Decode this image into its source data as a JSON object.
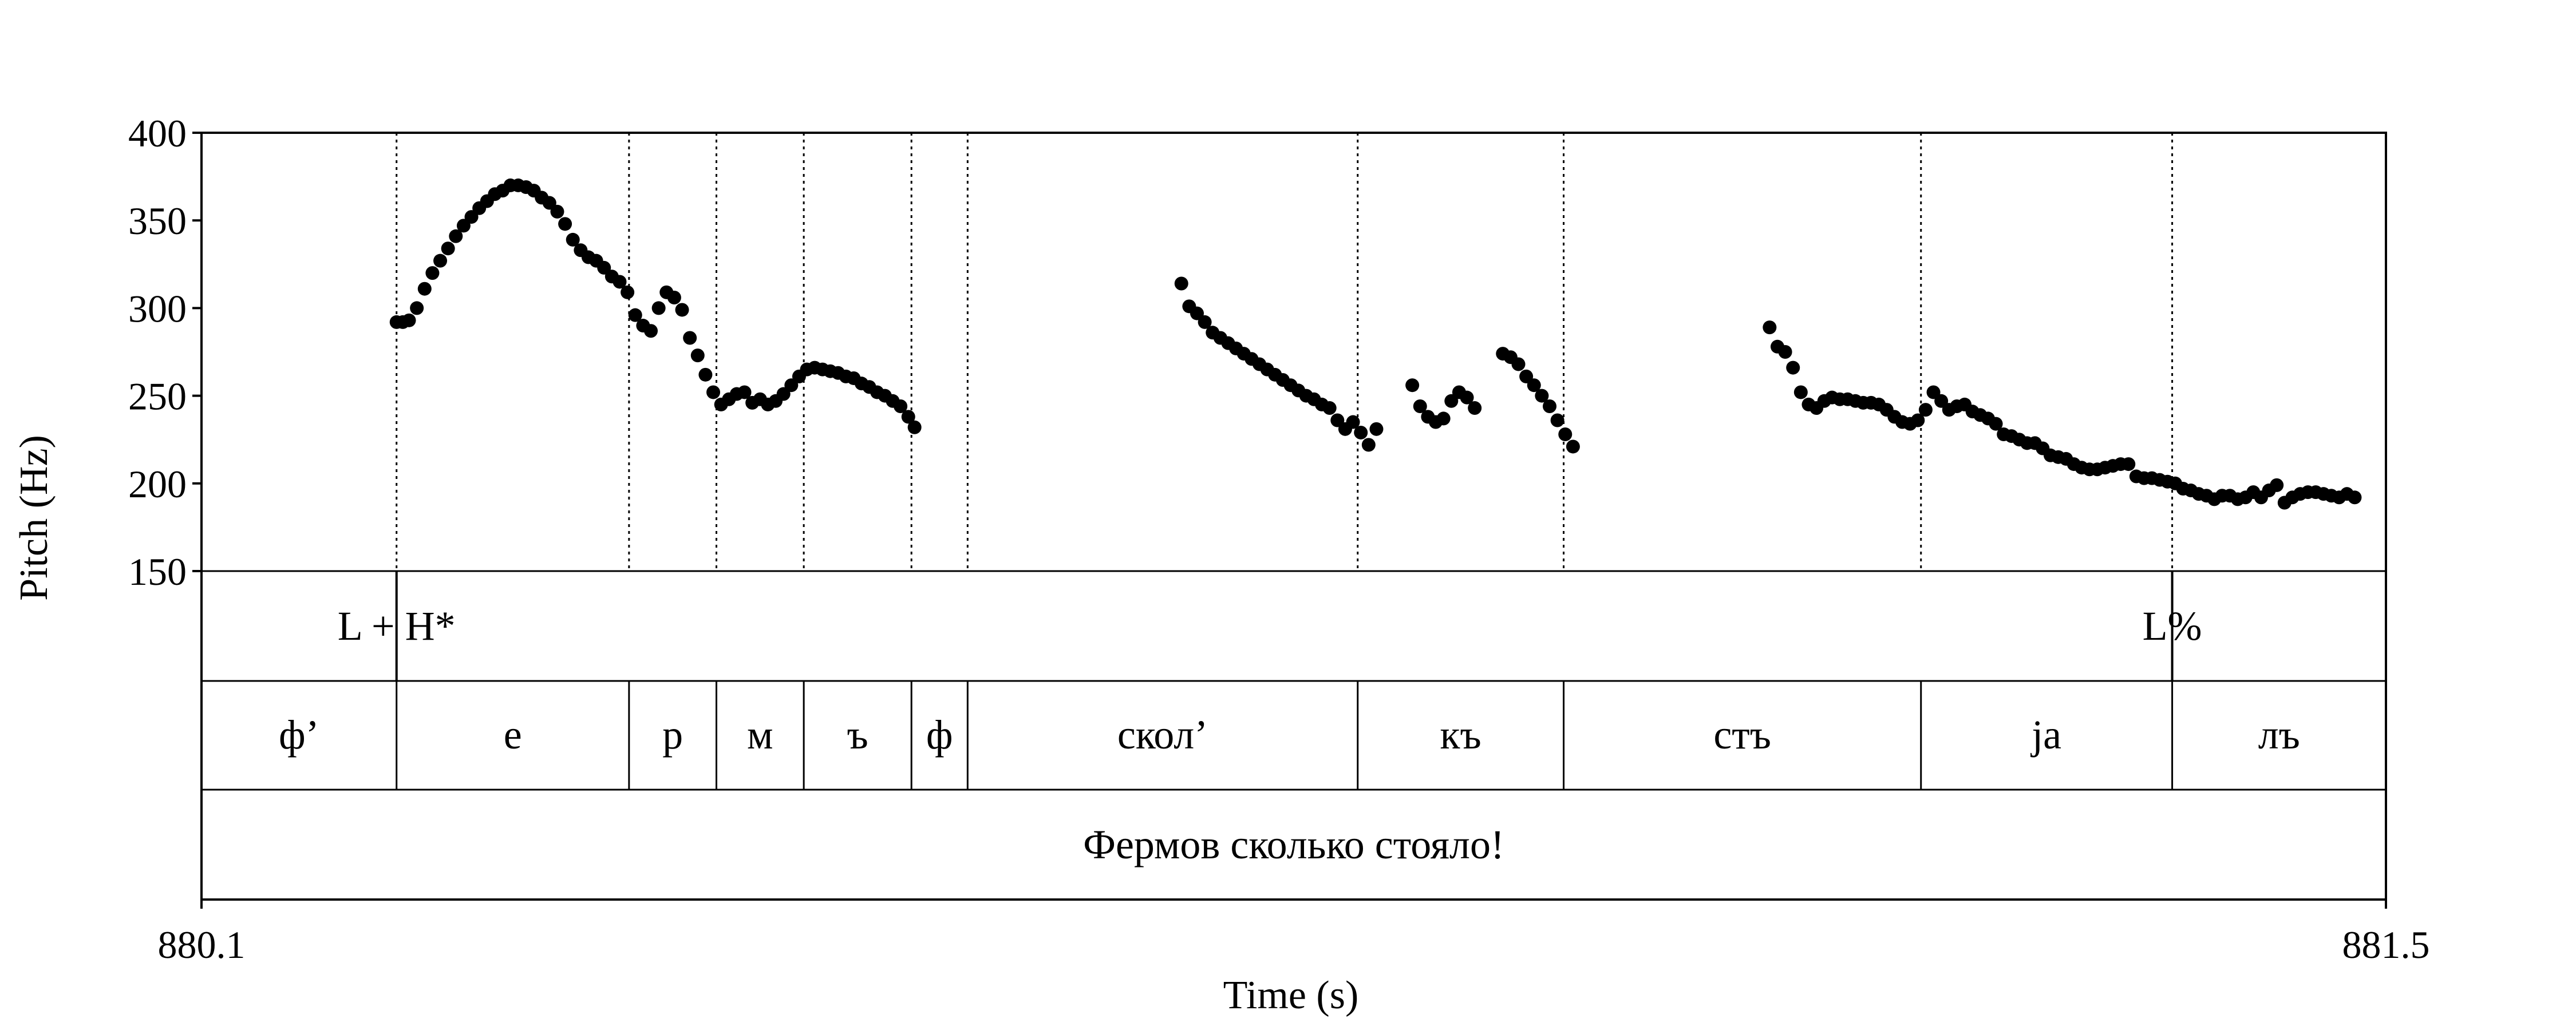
{
  "chart_data": {
    "type": "scatter",
    "title": "",
    "xlabel": "Time (s)",
    "ylabel": "Pitch (Hz)",
    "xlim": [
      880.1,
      881.5
    ],
    "ylim": [
      150,
      400
    ],
    "x_ticks": [
      "880.1",
      "881.5"
    ],
    "y_ticks": [
      "400",
      "350",
      "300",
      "250",
      "200",
      "150"
    ],
    "grid": false,
    "legend": "none",
    "boundaries": [
      880.225,
      880.374,
      880.43,
      880.486,
      880.555,
      880.591,
      880.841,
      880.973,
      881.202,
      881.363
    ],
    "tiers": {
      "tones": [
        {
          "label": "L + H*",
          "time": 880.225
        },
        {
          "label": "L%",
          "time": 881.363
        }
      ],
      "segments": [
        {
          "label": "ф’",
          "start": 880.1,
          "end": 880.225
        },
        {
          "label": "е",
          "start": 880.225,
          "end": 880.374
        },
        {
          "label": "р",
          "start": 880.374,
          "end": 880.43
        },
        {
          "label": "м",
          "start": 880.43,
          "end": 880.486
        },
        {
          "label": "ъ",
          "start": 880.486,
          "end": 880.555
        },
        {
          "label": "ф",
          "start": 880.555,
          "end": 880.591
        },
        {
          "label": "скол’",
          "start": 880.591,
          "end": 880.841
        },
        {
          "label": "къ",
          "start": 880.841,
          "end": 880.973
        },
        {
          "label": "стъ",
          "start": 880.973,
          "end": 881.202
        },
        {
          "label": "jа",
          "start": 881.202,
          "end": 881.363
        },
        {
          "label": "лъ",
          "start": 881.363,
          "end": 881.5
        }
      ],
      "sentence": {
        "label": "Фермов сколько стояло!",
        "start": 880.1,
        "end": 881.5
      }
    },
    "series": [
      {
        "points": [
          [
            880.225,
            292
          ],
          [
            880.229,
            292
          ],
          [
            880.233,
            293
          ],
          [
            880.238,
            300
          ],
          [
            880.243,
            311
          ],
          [
            880.248,
            320
          ],
          [
            880.253,
            327
          ],
          [
            880.258,
            334
          ],
          [
            880.263,
            341
          ],
          [
            880.268,
            347
          ],
          [
            880.273,
            352
          ],
          [
            880.278,
            357
          ],
          [
            880.283,
            361
          ],
          [
            880.288,
            365
          ],
          [
            880.293,
            367
          ],
          [
            880.298,
            370
          ],
          [
            880.303,
            370
          ],
          [
            880.308,
            369
          ],
          [
            880.313,
            367
          ],
          [
            880.318,
            363
          ],
          [
            880.323,
            360
          ],
          [
            880.328,
            355
          ],
          [
            880.333,
            348
          ],
          [
            880.338,
            339
          ],
          [
            880.343,
            333
          ],
          [
            880.348,
            329
          ],
          [
            880.353,
            327
          ],
          [
            880.358,
            323
          ],
          [
            880.363,
            318
          ],
          [
            880.368,
            315
          ],
          [
            880.373,
            309
          ],
          [
            880.378,
            296
          ],
          [
            880.383,
            290
          ],
          [
            880.388,
            287
          ],
          [
            880.393,
            300
          ],
          [
            880.398,
            309
          ],
          [
            880.403,
            306
          ],
          [
            880.408,
            299
          ],
          [
            880.413,
            283
          ],
          [
            880.418,
            273
          ],
          [
            880.423,
            262
          ],
          [
            880.428,
            252
          ],
          [
            880.433,
            245
          ],
          [
            880.438,
            248
          ],
          [
            880.443,
            251
          ],
          [
            880.448,
            252
          ],
          [
            880.453,
            246
          ],
          [
            880.458,
            248
          ],
          [
            880.463,
            245
          ],
          [
            880.468,
            247
          ],
          [
            880.473,
            251
          ],
          [
            880.478,
            256
          ],
          [
            880.483,
            261
          ],
          [
            880.488,
            265
          ],
          [
            880.493,
            266
          ],
          [
            880.498,
            265
          ],
          [
            880.503,
            264
          ],
          [
            880.508,
            263
          ],
          [
            880.513,
            261
          ],
          [
            880.518,
            260
          ],
          [
            880.523,
            257
          ],
          [
            880.528,
            255
          ],
          [
            880.533,
            252
          ],
          [
            880.538,
            250
          ],
          [
            880.543,
            247
          ],
          [
            880.548,
            244
          ],
          [
            880.553,
            238
          ],
          [
            880.557,
            232
          ],
          [
            880.728,
            314
          ],
          [
            880.733,
            301
          ],
          [
            880.738,
            297
          ],
          [
            880.743,
            292
          ],
          [
            880.748,
            286
          ],
          [
            880.753,
            283
          ],
          [
            880.758,
            280
          ],
          [
            880.763,
            277
          ],
          [
            880.768,
            274
          ],
          [
            880.773,
            271
          ],
          [
            880.778,
            268
          ],
          [
            880.783,
            265
          ],
          [
            880.788,
            262
          ],
          [
            880.793,
            259
          ],
          [
            880.798,
            256
          ],
          [
            880.803,
            253
          ],
          [
            880.808,
            250
          ],
          [
            880.813,
            248
          ],
          [
            880.818,
            245
          ],
          [
            880.823,
            243
          ],
          [
            880.828,
            236
          ],
          [
            880.833,
            231
          ],
          [
            880.838,
            235
          ],
          [
            880.843,
            229
          ],
          [
            880.848,
            222
          ],
          [
            880.853,
            231
          ],
          [
            880.876,
            256
          ],
          [
            880.881,
            244
          ],
          [
            880.886,
            238
          ],
          [
            880.891,
            235
          ],
          [
            880.896,
            237
          ],
          [
            880.901,
            247
          ],
          [
            880.906,
            252
          ],
          [
            880.911,
            249
          ],
          [
            880.916,
            243
          ],
          [
            880.934,
            274
          ],
          [
            880.939,
            272
          ],
          [
            880.944,
            268
          ],
          [
            880.949,
            261
          ],
          [
            880.954,
            256
          ],
          [
            880.959,
            250
          ],
          [
            880.964,
            244
          ],
          [
            880.969,
            236
          ],
          [
            880.974,
            228
          ],
          [
            880.979,
            221
          ],
          [
            881.105,
            289
          ],
          [
            881.11,
            278
          ],
          [
            881.115,
            275
          ],
          [
            881.12,
            266
          ],
          [
            881.125,
            252
          ],
          [
            881.13,
            245
          ],
          [
            881.135,
            243
          ],
          [
            881.14,
            247
          ],
          [
            881.145,
            249
          ],
          [
            881.15,
            248
          ],
          [
            881.155,
            248
          ],
          [
            881.16,
            247
          ],
          [
            881.165,
            246
          ],
          [
            881.17,
            246
          ],
          [
            881.175,
            245
          ],
          [
            881.18,
            242
          ],
          [
            881.185,
            238
          ],
          [
            881.19,
            235
          ],
          [
            881.195,
            234
          ],
          [
            881.2,
            236
          ],
          [
            881.205,
            242
          ],
          [
            881.21,
            252
          ],
          [
            881.215,
            247
          ],
          [
            881.22,
            242
          ],
          [
            881.225,
            244
          ],
          [
            881.23,
            245
          ],
          [
            881.235,
            241
          ],
          [
            881.24,
            239
          ],
          [
            881.245,
            237
          ],
          [
            881.25,
            234
          ],
          [
            881.255,
            228
          ],
          [
            881.26,
            227
          ],
          [
            881.265,
            225
          ],
          [
            881.27,
            223
          ],
          [
            881.275,
            223
          ],
          [
            881.28,
            220
          ],
          [
            881.285,
            216
          ],
          [
            881.29,
            215
          ],
          [
            881.295,
            214
          ],
          [
            881.3,
            211
          ],
          [
            881.305,
            209
          ],
          [
            881.31,
            208
          ],
          [
            881.315,
            208
          ],
          [
            881.32,
            209
          ],
          [
            881.325,
            210
          ],
          [
            881.33,
            211
          ],
          [
            881.335,
            211
          ],
          [
            881.34,
            204
          ],
          [
            881.345,
            203
          ],
          [
            881.35,
            203
          ],
          [
            881.355,
            202
          ],
          [
            881.36,
            201
          ],
          [
            881.365,
            200
          ],
          [
            881.37,
            197
          ],
          [
            881.375,
            196
          ],
          [
            881.38,
            194
          ],
          [
            881.385,
            193
          ],
          [
            881.39,
            191
          ],
          [
            881.395,
            193
          ],
          [
            881.4,
            193
          ],
          [
            881.405,
            191
          ],
          [
            881.41,
            192
          ],
          [
            881.415,
            195
          ],
          [
            881.42,
            192
          ],
          [
            881.425,
            196
          ],
          [
            881.43,
            199
          ],
          [
            881.435,
            189
          ],
          [
            881.44,
            192
          ],
          [
            881.445,
            194
          ],
          [
            881.45,
            195
          ],
          [
            881.455,
            195
          ],
          [
            881.46,
            194
          ],
          [
            881.465,
            193
          ],
          [
            881.47,
            192
          ],
          [
            881.475,
            194
          ],
          [
            881.48,
            192
          ]
        ]
      }
    ]
  }
}
